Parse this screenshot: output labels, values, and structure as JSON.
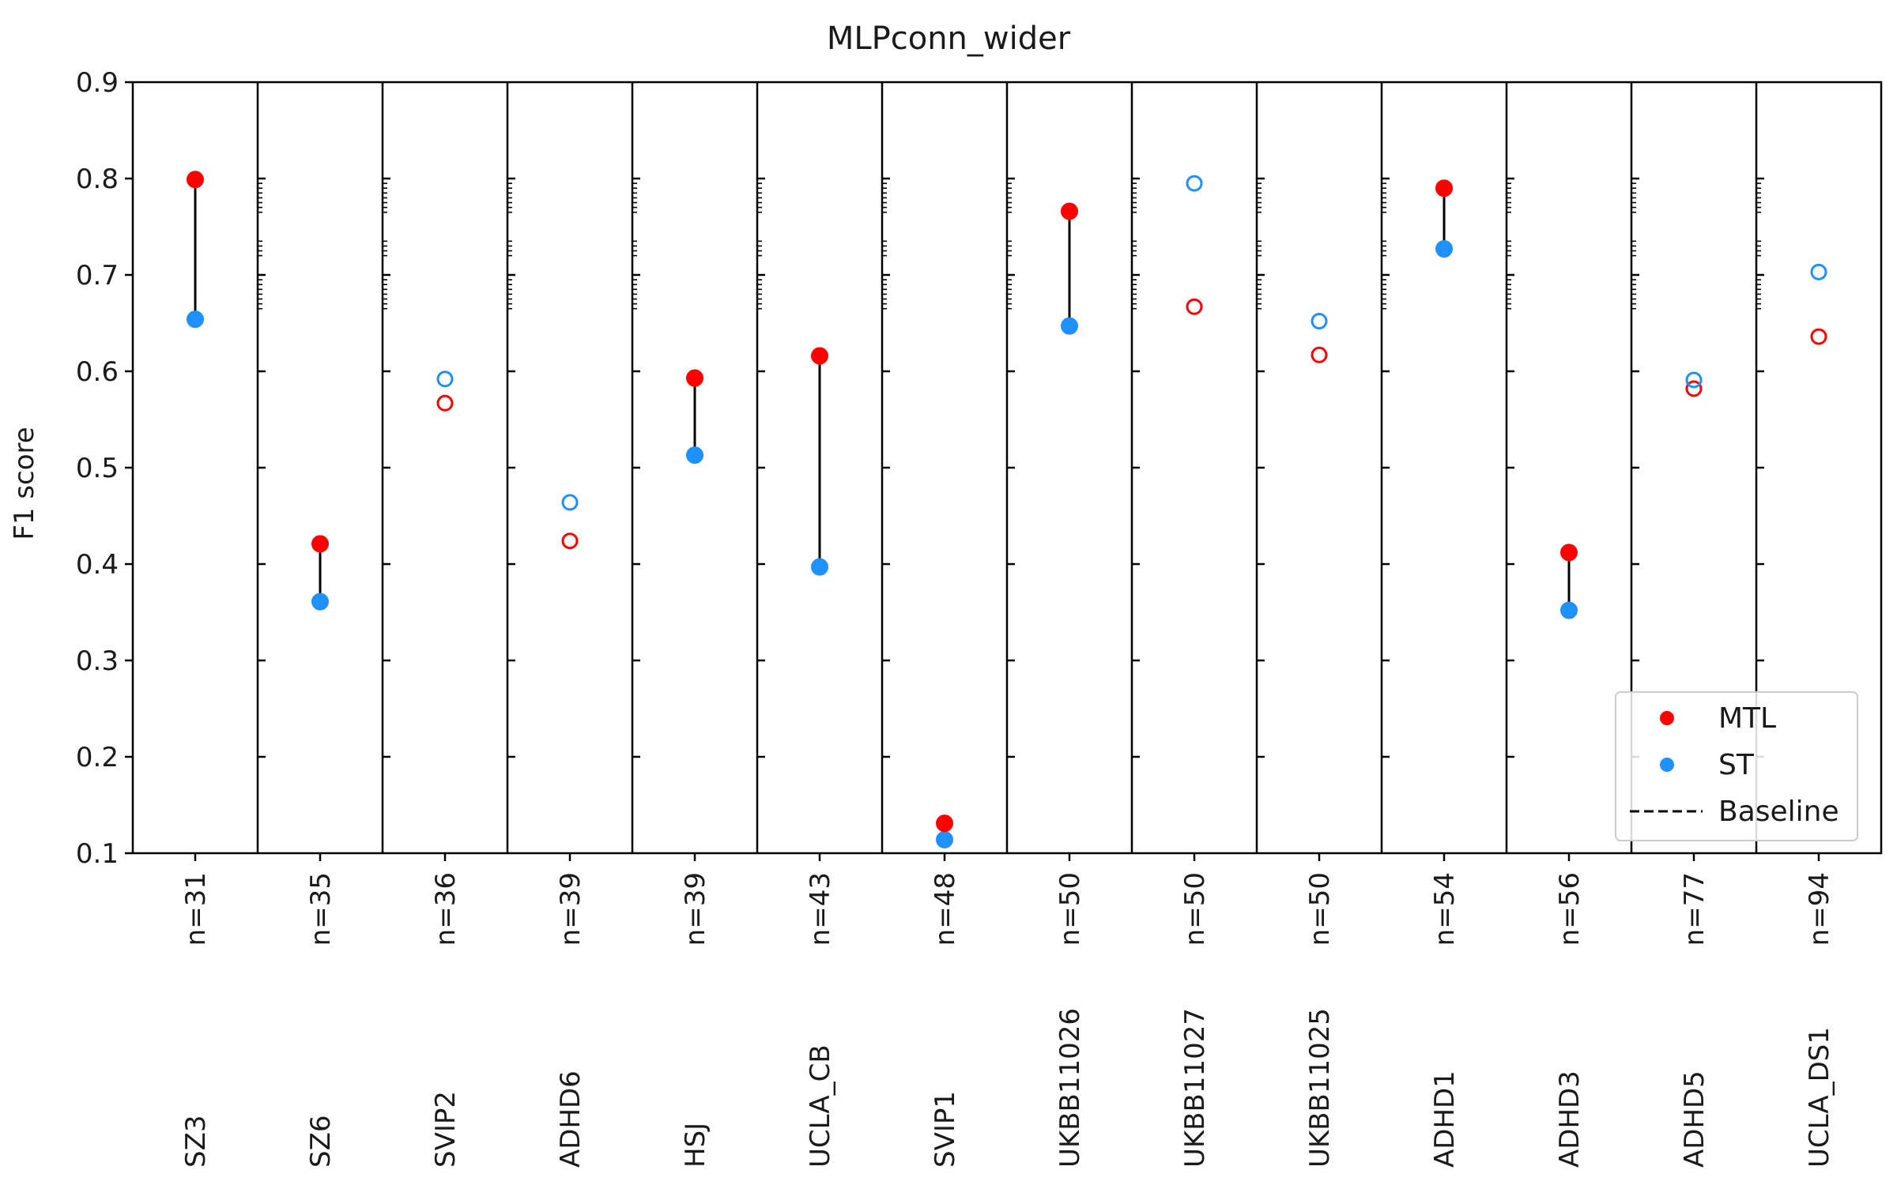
{
  "chart_data": {
    "type": "scatter",
    "title": "MLPconn_wider",
    "xlabel": "",
    "ylabel": "F1 score",
    "ylim": [
      0.1,
      0.9
    ],
    "yticks": [
      "0.1",
      "0.2",
      "0.3",
      "0.4",
      "0.5",
      "0.6",
      "0.7",
      "0.8",
      "0.9"
    ],
    "grid": false,
    "legend_position": "lower-right",
    "colors": {
      "mtl": "#ff0000",
      "st": "#1e90ff",
      "connector": "#000000",
      "baseline": "#000000"
    },
    "panels": [
      {
        "name": "SZ3",
        "n": "n=31",
        "mtl": 0.799,
        "st": 0.654,
        "filled": true
      },
      {
        "name": "SZ6",
        "n": "n=35",
        "mtl": 0.421,
        "st": 0.361,
        "filled": true
      },
      {
        "name": "SVIP2",
        "n": "n=36",
        "mtl": 0.567,
        "st": 0.592,
        "filled": false
      },
      {
        "name": "ADHD6",
        "n": "n=39",
        "mtl": 0.424,
        "st": 0.464,
        "filled": false
      },
      {
        "name": "HSJ",
        "n": "n=39",
        "mtl": 0.593,
        "st": 0.513,
        "filled": true
      },
      {
        "name": "UCLA_CB",
        "n": "n=43",
        "mtl": 0.616,
        "st": 0.397,
        "filled": true
      },
      {
        "name": "SVIP1",
        "n": "n=48",
        "mtl": 0.131,
        "st": 0.114,
        "filled": true
      },
      {
        "name": "UKBB11026",
        "n": "n=50",
        "mtl": 0.766,
        "st": 0.647,
        "filled": true
      },
      {
        "name": "UKBB11027",
        "n": "n=50",
        "mtl": 0.667,
        "st": 0.795,
        "filled": false
      },
      {
        "name": "UKBB11025",
        "n": "n=50",
        "mtl": 0.617,
        "st": 0.652,
        "filled": false
      },
      {
        "name": "ADHD1",
        "n": "n=54",
        "mtl": 0.79,
        "st": 0.727,
        "filled": true
      },
      {
        "name": "ADHD3",
        "n": "n=56",
        "mtl": 0.412,
        "st": 0.352,
        "filled": true
      },
      {
        "name": "ADHD5",
        "n": "n=77",
        "mtl": 0.582,
        "st": 0.591,
        "filled": false
      },
      {
        "name": "UCLA_DS1",
        "n": "n=94",
        "mtl": 0.636,
        "st": 0.703,
        "filled": false
      }
    ],
    "legend": [
      {
        "label": "MTL",
        "marker": "mtl-dot"
      },
      {
        "label": "ST",
        "marker": "st-dot"
      },
      {
        "label": "Baseline",
        "marker": "dashed-line"
      }
    ]
  }
}
